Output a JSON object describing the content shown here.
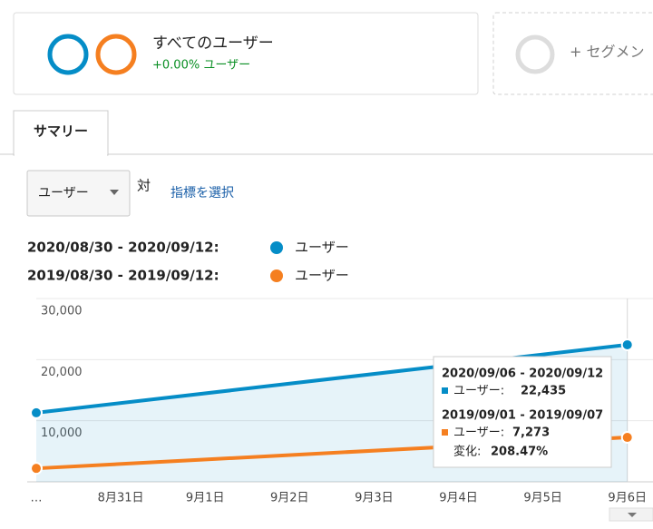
{
  "segments": [
    {
      "name": "すべてのユーザー",
      "stat": "+0.00% ユーザー"
    },
    {
      "name": "+ セグメン"
    }
  ],
  "tab": "サマリー",
  "metric_dropdown": "ユーザー",
  "vs": "対",
  "select_metric": "指標を選択",
  "chart_data": {
    "type": "line",
    "categories": [
      "…",
      "8月31日",
      "9月1日",
      "9月2日",
      "9月3日",
      "9月4日",
      "9月5日",
      "9月6日"
    ],
    "series": [
      {
        "name": "ユーザー",
        "range": "2020/08/30 - 2020/09/12:",
        "color": "#058dc7",
        "x": [
          "…",
          "9月6日"
        ],
        "values": [
          11300,
          22435
        ],
        "value_labels": [
          null,
          "22,435"
        ],
        "area": true
      },
      {
        "name": "ユーザー",
        "range": "2019/08/30 - 2019/09/12:",
        "color": "#f57f20",
        "x": [
          "…",
          "9月6日"
        ],
        "values": [
          2200,
          7273
        ],
        "value_labels": [
          null,
          "7,273"
        ]
      }
    ],
    "ylim": [
      0,
      30000
    ],
    "yticks": [
      {
        "value": 10000,
        "label": "10,000"
      },
      {
        "value": 20000,
        "label": "20,000"
      },
      {
        "value": 30000,
        "label": "30,000"
      }
    ],
    "grid": true,
    "tooltip": {
      "ranges": [
        "2020/09/06 - 2020/09/12",
        "2019/09/01 - 2019/09/07"
      ],
      "metric": "ユーザー:",
      "change_label": "変化:",
      "change": "208.47%"
    }
  }
}
